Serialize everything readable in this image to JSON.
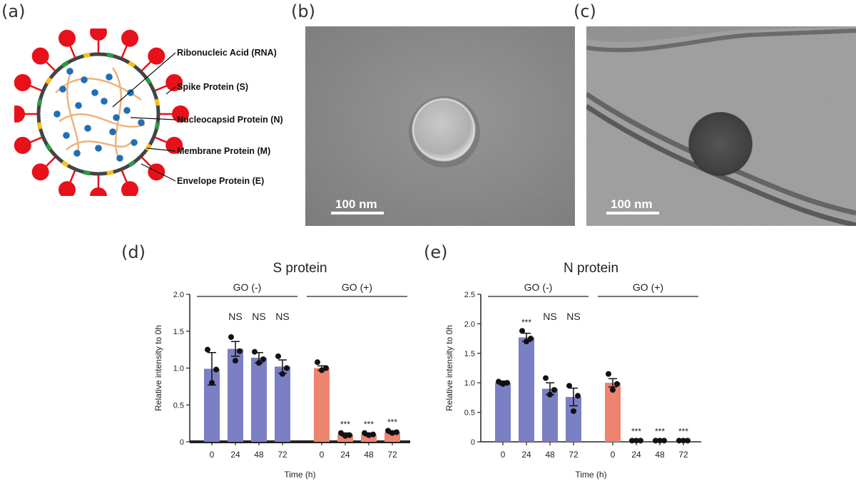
{
  "panels": {
    "a": "(a)",
    "b": "(b)",
    "c": "(c)",
    "d": "(d)",
    "e": "(e)"
  },
  "diagram": {
    "labels": [
      "Ribonucleic Acid (RNA)",
      "Spike Protein (S)",
      "Nucleocapsid Protein (N)",
      "Membrane Protein (M)",
      "Envelope Protein (E)"
    ],
    "colors": {
      "spike": "#e8101a",
      "membrane": "#2e9a44",
      "envelope": "#f2c21b",
      "nucleocapsid": "#1f6fb5",
      "rna": "#f0b27a",
      "envelope_ring": "#444444"
    }
  },
  "micrographs": {
    "b_scale": "100 nm",
    "c_scale": "100 nm"
  },
  "chart_data": [
    {
      "type": "bar",
      "title": "S protein",
      "ylabel": "Relative intensity to 0h",
      "xlabel": "Time (h)",
      "ylim": [
        0,
        2.0
      ],
      "yticks": [
        "0",
        "0.5",
        "1.0",
        "1.5",
        "2.0"
      ],
      "groups": [
        {
          "label": "GO (-)",
          "color": "#7b7fc4",
          "categories": [
            "0",
            "24",
            "48",
            "72"
          ],
          "values": [
            0.99,
            1.26,
            1.14,
            1.02
          ],
          "errors": [
            0.22,
            0.1,
            0.07,
            0.09
          ],
          "annotations": [
            "",
            "NS",
            "NS",
            "NS"
          ],
          "points": [
            [
              1.25,
              0.98,
              0.8
            ],
            [
              1.42,
              1.23,
              1.1
            ],
            [
              1.22,
              1.12,
              1.07
            ],
            [
              1.16,
              1.0,
              0.92
            ]
          ]
        },
        {
          "label": "GO (+)",
          "color": "#ee8470",
          "categories": [
            "0",
            "24",
            "48",
            "72"
          ],
          "values": [
            1.0,
            0.1,
            0.1,
            0.13
          ],
          "errors": [
            0.03,
            0.02,
            0.02,
            0.02
          ],
          "annotations": [
            "",
            "***",
            "***",
            "***"
          ],
          "points": [
            [
              1.08,
              1.0,
              0.97
            ],
            [
              0.12,
              0.09,
              0.08
            ],
            [
              0.12,
              0.1,
              0.09
            ],
            [
              0.15,
              0.13,
              0.12
            ]
          ]
        }
      ]
    },
    {
      "type": "bar",
      "title": "N protein",
      "ylabel": "Relative intensity to 0h",
      "xlabel": "Time (h)",
      "ylim": [
        0,
        2.5
      ],
      "yticks": [
        "0",
        "0.5",
        "1.0",
        "1.5",
        "2.0",
        "2.5"
      ],
      "groups": [
        {
          "label": "GO (-)",
          "color": "#7b7fc4",
          "categories": [
            "0",
            "24",
            "48",
            "72"
          ],
          "values": [
            1.0,
            1.77,
            0.9,
            0.76
          ],
          "errors": [
            0.03,
            0.07,
            0.1,
            0.15
          ],
          "annotations": [
            "",
            "***",
            "NS",
            "NS"
          ],
          "points": [
            [
              1.02,
              1.0,
              0.98
            ],
            [
              1.88,
              1.75,
              1.7
            ],
            [
              1.08,
              0.88,
              0.8
            ],
            [
              0.95,
              0.78,
              0.52
            ]
          ]
        },
        {
          "label": "GO (+)",
          "color": "#ee8470",
          "categories": [
            "0",
            "24",
            "48",
            "72"
          ],
          "values": [
            1.0,
            0.02,
            0.02,
            0.02
          ],
          "errors": [
            0.07,
            0.01,
            0.01,
            0.01
          ],
          "annotations": [
            "",
            "***",
            "***",
            "***"
          ],
          "points": [
            [
              1.15,
              0.98,
              0.88
            ],
            [
              0.02,
              0.02,
              0.02
            ],
            [
              0.02,
              0.02,
              0.02
            ],
            [
              0.02,
              0.02,
              0.02
            ]
          ]
        }
      ]
    }
  ]
}
